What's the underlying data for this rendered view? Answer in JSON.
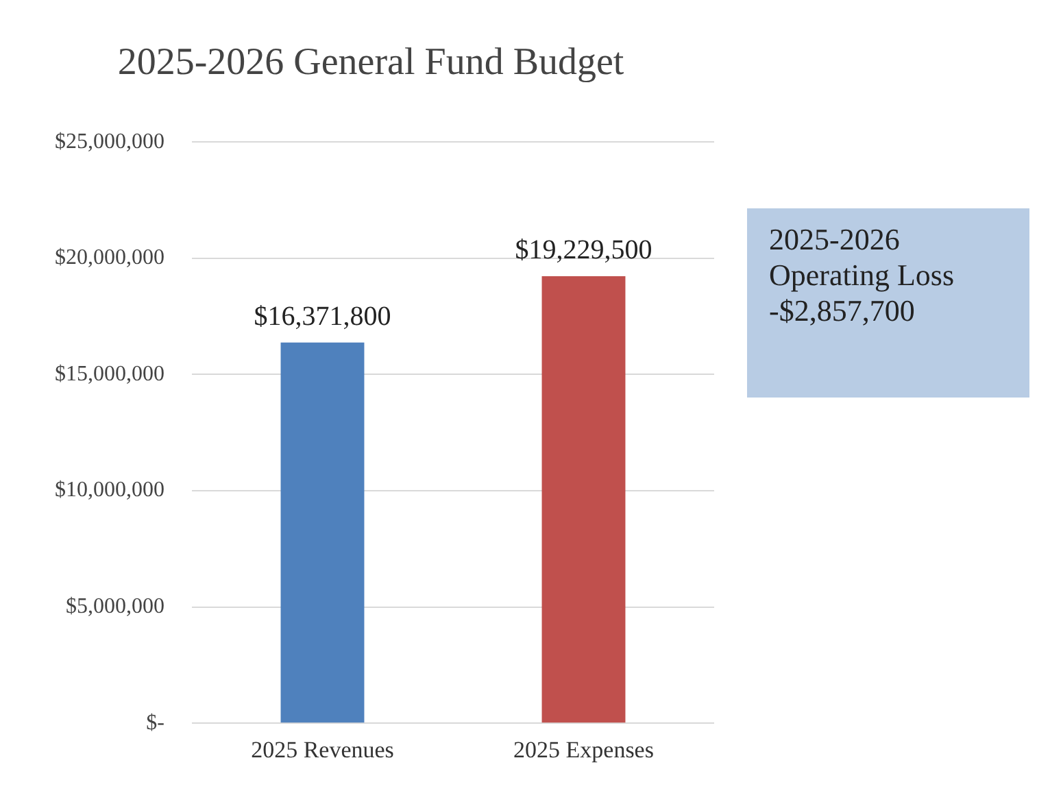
{
  "chart_data": {
    "type": "bar",
    "title": "2025-2026 General Fund Budget",
    "categories": [
      "2025 Revenues",
      "2025 Expenses"
    ],
    "values": [
      16371800,
      19229500
    ],
    "colors": [
      "#4f81bd",
      "#c0504d"
    ],
    "value_labels": [
      "$16,371,800",
      "$19,229,500"
    ],
    "ylim": [
      0,
      25000000
    ],
    "yticks": [
      {
        "value": 0,
        "label": "$-"
      },
      {
        "value": 5000000,
        "label": "$5,000,000"
      },
      {
        "value": 10000000,
        "label": "$10,000,000"
      },
      {
        "value": 15000000,
        "label": "$15,000,000"
      },
      {
        "value": 20000000,
        "label": "$20,000,000"
      },
      {
        "value": 25000000,
        "label": "$25,000,000"
      }
    ],
    "grid": "y",
    "annotations": [
      "2025-2026\nOperating Loss\n-$2,857,700"
    ]
  }
}
